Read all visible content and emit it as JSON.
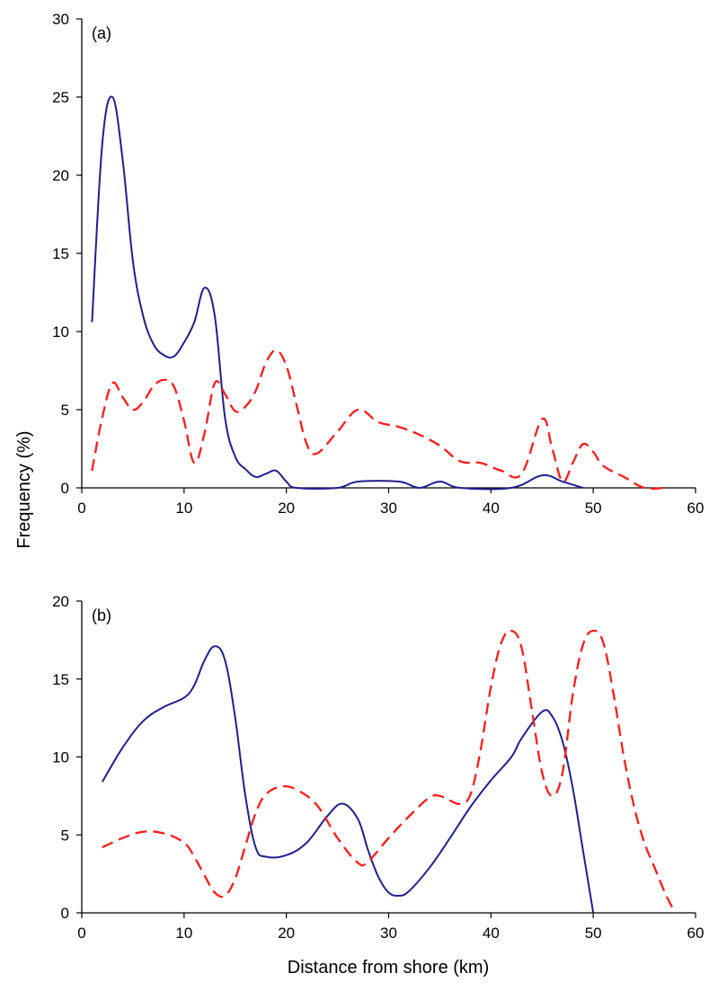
{
  "figure": {
    "ylabel": "Frequency (%)",
    "xlabel": "Distance from shore (km)"
  },
  "colors": {
    "series_solid": "#1f1f8f",
    "series_dashed": "#ff1a1a",
    "axis": "#000000"
  },
  "chart_data": [
    {
      "type": "line",
      "panel_label": "(a)",
      "xlim": [
        0,
        60
      ],
      "ylim": [
        0,
        30
      ],
      "xticks": [
        0,
        10,
        20,
        30,
        40,
        50,
        60
      ],
      "yticks": [
        0,
        5,
        10,
        15,
        20,
        25,
        30
      ],
      "xtick_labels": [
        "0",
        "10",
        "20",
        "30",
        "40",
        "50",
        "60"
      ],
      "ytick_labels": [
        "0",
        "5",
        "10",
        "15",
        "20",
        "25",
        "30"
      ],
      "grid": false,
      "series": [
        {
          "style": "solid",
          "points": [
            [
              1,
              10.6
            ],
            [
              2,
              22
            ],
            [
              3,
              25
            ],
            [
              4,
              21
            ],
            [
              5,
              14.5
            ],
            [
              6,
              11
            ],
            [
              7,
              9.2
            ],
            [
              8,
              8.5
            ],
            [
              9,
              8.4
            ],
            [
              10,
              9.3
            ],
            [
              11,
              10.6
            ],
            [
              12,
              12.8
            ],
            [
              13,
              11
            ],
            [
              14,
              4.5
            ],
            [
              15,
              2
            ],
            [
              16,
              1.2
            ],
            [
              17,
              0.7
            ],
            [
              18,
              0.9
            ],
            [
              19,
              1.1
            ],
            [
              20,
              0.4
            ],
            [
              21,
              0
            ],
            [
              25,
              0
            ],
            [
              27,
              0.4
            ],
            [
              31,
              0.4
            ],
            [
              33,
              0
            ],
            [
              35,
              0.4
            ],
            [
              37,
              0
            ],
            [
              42,
              0
            ],
            [
              45,
              0.8
            ],
            [
              47,
              0.4
            ],
            [
              49,
              0
            ]
          ]
        },
        {
          "style": "dashed",
          "points": [
            [
              1,
              1.1
            ],
            [
              2,
              4.5
            ],
            [
              3,
              6.7
            ],
            [
              4,
              5.8
            ],
            [
              5,
              5
            ],
            [
              6,
              5.5
            ],
            [
              7,
              6.5
            ],
            [
              8,
              6.9
            ],
            [
              9,
              6.5
            ],
            [
              10,
              4.3
            ],
            [
              11,
              1.6
            ],
            [
              12,
              3.5
            ],
            [
              13,
              6.7
            ],
            [
              14,
              6
            ],
            [
              15,
              4.9
            ],
            [
              16,
              5.2
            ],
            [
              17,
              6.2
            ],
            [
              18,
              8
            ],
            [
              19,
              8.8
            ],
            [
              20,
              7.8
            ],
            [
              21,
              5.3
            ],
            [
              22,
              2.8
            ],
            [
              23,
              2.2
            ],
            [
              25,
              3.6
            ],
            [
              27,
              5
            ],
            [
              29,
              4.2
            ],
            [
              31,
              3.9
            ],
            [
              33,
              3.4
            ],
            [
              35,
              2.7
            ],
            [
              37,
              1.7
            ],
            [
              39,
              1.6
            ],
            [
              41,
              1.1
            ],
            [
              43,
              0.9
            ],
            [
              45,
              4.4
            ],
            [
              46,
              2.5
            ],
            [
              47,
              0.4
            ],
            [
              48,
              1.6
            ],
            [
              49,
              2.8
            ],
            [
              50,
              2.3
            ],
            [
              51,
              1.4
            ],
            [
              53,
              0.7
            ],
            [
              55,
              0
            ],
            [
              57,
              0
            ]
          ]
        }
      ]
    },
    {
      "type": "line",
      "panel_label": "(b)",
      "xlim": [
        0,
        60
      ],
      "ylim": [
        0,
        20
      ],
      "xticks": [
        0,
        10,
        20,
        30,
        40,
        50,
        60
      ],
      "yticks": [
        0,
        5,
        10,
        15,
        20
      ],
      "xtick_labels": [
        "0",
        "10",
        "20",
        "30",
        "40",
        "50",
        "60"
      ],
      "ytick_labels": [
        "0",
        "5",
        "10",
        "15",
        "20"
      ],
      "grid": false,
      "series": [
        {
          "style": "solid",
          "points": [
            [
              2,
              8.4
            ],
            [
              4,
              10.6
            ],
            [
              6,
              12.3
            ],
            [
              8,
              13.2
            ],
            [
              10,
              13.8
            ],
            [
              11,
              14.6
            ],
            [
              12,
              16.2
            ],
            [
              13,
              17.1
            ],
            [
              14,
              16.2
            ],
            [
              15,
              12.5
            ],
            [
              16,
              7.5
            ],
            [
              17,
              4.2
            ],
            [
              18,
              3.6
            ],
            [
              20,
              3.7
            ],
            [
              22,
              4.5
            ],
            [
              24,
              6.2
            ],
            [
              25.5,
              7
            ],
            [
              27,
              6
            ],
            [
              28,
              4
            ],
            [
              29,
              2.3
            ],
            [
              30,
              1.3
            ],
            [
              31,
              1.1
            ],
            [
              32,
              1.4
            ],
            [
              34,
              2.9
            ],
            [
              36,
              4.8
            ],
            [
              38,
              6.8
            ],
            [
              40,
              8.5
            ],
            [
              42,
              10
            ],
            [
              43,
              11.2
            ],
            [
              45,
              12.9
            ],
            [
              46,
              12.6
            ],
            [
              47,
              11
            ],
            [
              48,
              8
            ],
            [
              49,
              4
            ],
            [
              50,
              0
            ]
          ]
        },
        {
          "style": "dashed",
          "points": [
            [
              2,
              4.2
            ],
            [
              4,
              4.8
            ],
            [
              6,
              5.2
            ],
            [
              8,
              5.1
            ],
            [
              10,
              4.5
            ],
            [
              11,
              3.6
            ],
            [
              12,
              2.4
            ],
            [
              13,
              1.3
            ],
            [
              14,
              1.1
            ],
            [
              15,
              2.2
            ],
            [
              16,
              4.3
            ],
            [
              17,
              6.4
            ],
            [
              18,
              7.6
            ],
            [
              19.5,
              8.1
            ],
            [
              21,
              7.9
            ],
            [
              23,
              6.9
            ],
            [
              25,
              4.8
            ],
            [
              27,
              3.2
            ],
            [
              28,
              3.3
            ],
            [
              30,
              4.8
            ],
            [
              32,
              6.2
            ],
            [
              34,
              7.4
            ],
            [
              35,
              7.5
            ],
            [
              36,
              7.2
            ],
            [
              37,
              7
            ],
            [
              38,
              7.6
            ],
            [
              39,
              10.5
            ],
            [
              40,
              14.5
            ],
            [
              41,
              17.3
            ],
            [
              42,
              18.1
            ],
            [
              43,
              17
            ],
            [
              44,
              13
            ],
            [
              45,
              9
            ],
            [
              46,
              7.5
            ],
            [
              47,
              9
            ],
            [
              48,
              14
            ],
            [
              49,
              17.2
            ],
            [
              50,
              18.1
            ],
            [
              51,
              17.3
            ],
            [
              52,
              14
            ],
            [
              53,
              10
            ],
            [
              54,
              6.8
            ],
            [
              55,
              4.5
            ],
            [
              56,
              2.9
            ],
            [
              57,
              1.3
            ],
            [
              58,
              0
            ]
          ]
        }
      ]
    }
  ]
}
